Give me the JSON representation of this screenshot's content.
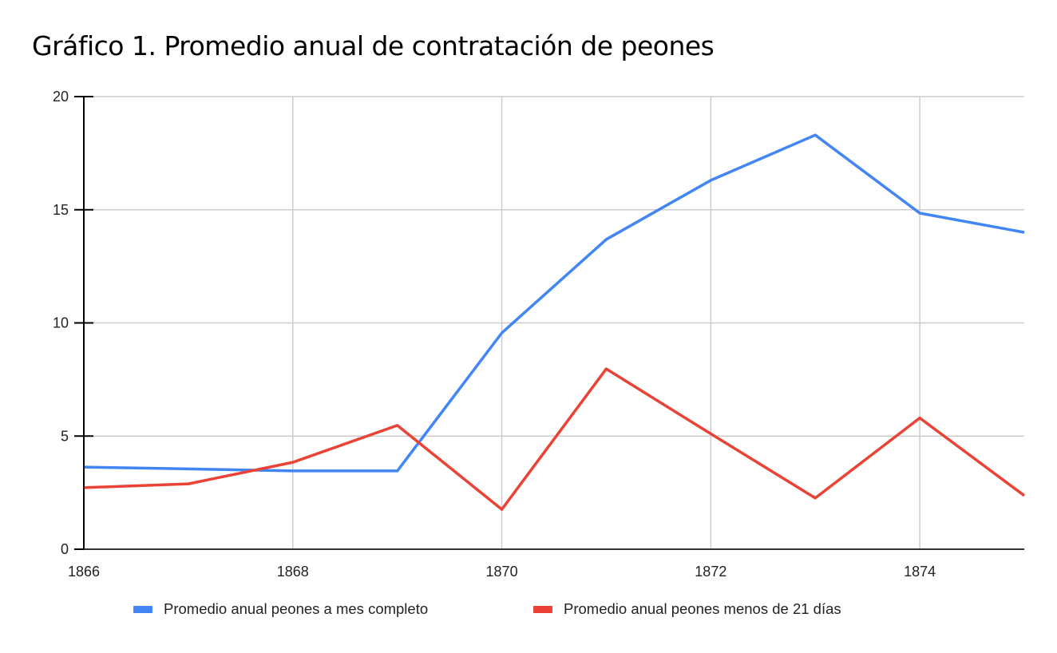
{
  "title": "Gráfico 1. Promedio anual de contratación de peones",
  "chart_data": {
    "type": "line",
    "title": "Gráfico 1. Promedio anual de contratación de peones",
    "xlabel": "",
    "ylabel": "",
    "x": [
      1866,
      1867,
      1868,
      1869,
      1870,
      1871,
      1872,
      1873,
      1874,
      1875
    ],
    "x_tick_labels": [
      "1866",
      "1868",
      "1870",
      "1872",
      "1874"
    ],
    "y_tick_labels": [
      "0",
      "5",
      "10",
      "15",
      "20"
    ],
    "ylim": [
      0,
      20
    ],
    "xlim": [
      1866,
      1875
    ],
    "grid": true,
    "legend_position": "bottom",
    "series": [
      {
        "name": "Promedio anual peones a mes completo",
        "color": "#4285F4",
        "values": [
          3.63,
          3.55,
          3.46,
          3.46,
          9.56,
          13.69,
          16.3,
          18.3,
          14.85,
          14.0
        ]
      },
      {
        "name": "Promedio anual peones menos de 21 días",
        "color": "#EA4335",
        "values": [
          2.72,
          2.89,
          3.84,
          5.47,
          1.76,
          7.97,
          5.1,
          2.26,
          5.8,
          2.37
        ]
      }
    ]
  },
  "legend": {
    "items": [
      {
        "label": "Promedio anual peones a mes completo",
        "color": "#4285F4"
      },
      {
        "label": "Promedio anual peones menos de 21 días",
        "color": "#EA4335"
      }
    ]
  }
}
